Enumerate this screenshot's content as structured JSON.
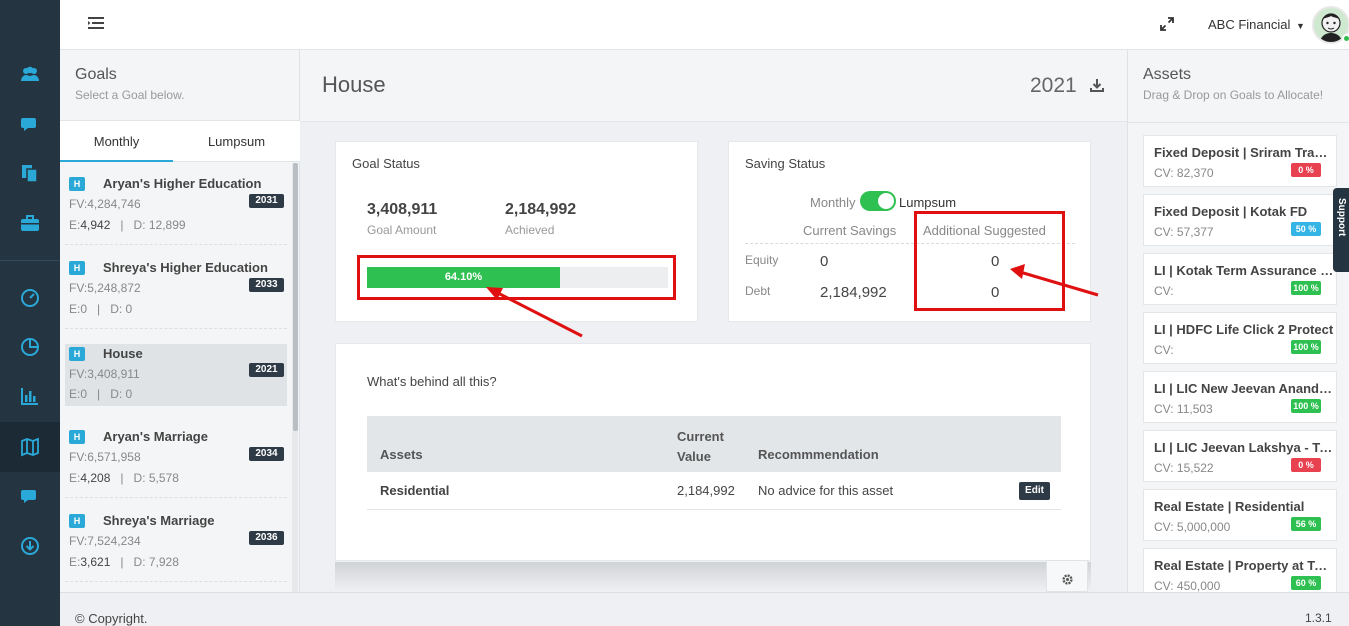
{
  "topbar": {
    "org_name": "ABC Financial"
  },
  "goals_panel": {
    "title": "Goals",
    "subtitle": "Select a Goal below.",
    "tabs": [
      "Monthly",
      "Lumpsum"
    ],
    "goals": [
      {
        "tag": "H",
        "name": "Aryan's Higher Education",
        "fv_label": "FV:",
        "fv": "4,284,746",
        "e_label": "E:",
        "e": "4,942",
        "d_label": "D:",
        "d": "12,899",
        "year": "2031"
      },
      {
        "tag": "H",
        "name": "Shreya's Higher Education",
        "fv_label": "FV:",
        "fv": "5,248,872",
        "e_label": "E:",
        "e": "0",
        "d_label": "D:",
        "d": "0",
        "year": "2033"
      },
      {
        "tag": "H",
        "name": "House",
        "fv_label": "FV:",
        "fv": "3,408,911",
        "e_label": "E:",
        "e": "0",
        "d_label": "D:",
        "d": "0",
        "year": "2021"
      },
      {
        "tag": "H",
        "name": "Aryan's Marriage",
        "fv_label": "FV:",
        "fv": "6,571,958",
        "e_label": "E:",
        "e": "4,208",
        "d_label": "D:",
        "d": "5,578",
        "year": "2034"
      },
      {
        "tag": "H",
        "name": "Shreya's Marriage",
        "fv_label": "FV:",
        "fv": "7,524,234",
        "e_label": "E:",
        "e": "3,621",
        "d_label": "D:",
        "d": "7,928",
        "year": "2036"
      }
    ],
    "separator": "|"
  },
  "main": {
    "title": "House",
    "year": "2021",
    "goal_status": {
      "title": "Goal Status",
      "goal_amount": "3,408,911",
      "goal_amount_label": "Goal Amount",
      "achieved": "2,184,992",
      "achieved_label": "Achieved",
      "progress_text": "64.10%",
      "progress_fraction": 0.641
    },
    "saving_status": {
      "title": "Saving Status",
      "toggle_left": "Monthly",
      "toggle_right": "Lumpsum",
      "col_current": "Current Savings",
      "col_additional": "Additional Suggested",
      "rows": [
        {
          "label": "Equity",
          "current": "0",
          "additional": "0"
        },
        {
          "label": "Debt",
          "current": "2,184,992",
          "additional": "0"
        }
      ]
    },
    "behind": {
      "title": "What's behind all this?",
      "headers": {
        "assets": "Assets",
        "current_value": "Current Value",
        "recommendation": "Recommmendation"
      },
      "rows": [
        {
          "asset": "Residential",
          "current_value": "2,184,992",
          "recommendation": "No advice for this asset",
          "action": "Edit"
        }
      ]
    }
  },
  "assets_panel": {
    "title": "Assets",
    "subtitle": "Drag & Drop on Goals to Allocate!",
    "items": [
      {
        "name": "Fixed Deposit | Sriram Transport",
        "cv_label": "CV:",
        "cv": "82,370",
        "pct": "0 %",
        "pct_color": "#e8414f"
      },
      {
        "name": "Fixed Deposit | Kotak FD",
        "cv_label": "CV:",
        "cv": "57,377",
        "pct": "50 %",
        "pct_color": "#35b5e5"
      },
      {
        "name": "LI | Kotak Term Assurance Plan",
        "cv_label": "CV:",
        "cv": "",
        "pct": "100 %",
        "pct_color": "#2ec050"
      },
      {
        "name": "LI | HDFC Life Click 2 Protect",
        "cv_label": "CV:",
        "cv": "",
        "pct": "100 %",
        "pct_color": "#2ec050"
      },
      {
        "name": "LI | LIC New Jeevan Anand - Plan",
        "cv_label": "CV:",
        "cv": "11,503",
        "pct": "100 %",
        "pct_color": "#2ec050"
      },
      {
        "name": "LI | LIC Jeevan Lakshya - Table",
        "cv_label": "CV:",
        "cv": "15,522",
        "pct": "0 %",
        "pct_color": "#e8414f"
      },
      {
        "name": "Real Estate | Residential",
        "cv_label": "CV:",
        "cv": "5,000,000",
        "pct": "56 %",
        "pct_color": "#2ec050"
      },
      {
        "name": "Real Estate | Property at Town",
        "cv_label": "CV:",
        "cv": "450,000",
        "pct": "60 %",
        "pct_color": "#2ec050"
      }
    ],
    "support_label": "Support"
  },
  "footer": {
    "copyright": "© Copyright.",
    "version": "1.3.1"
  },
  "colors": {
    "accent": "#2aa8d8",
    "rail": "#243541",
    "success": "#2ec050",
    "annotation": "#e01010"
  }
}
